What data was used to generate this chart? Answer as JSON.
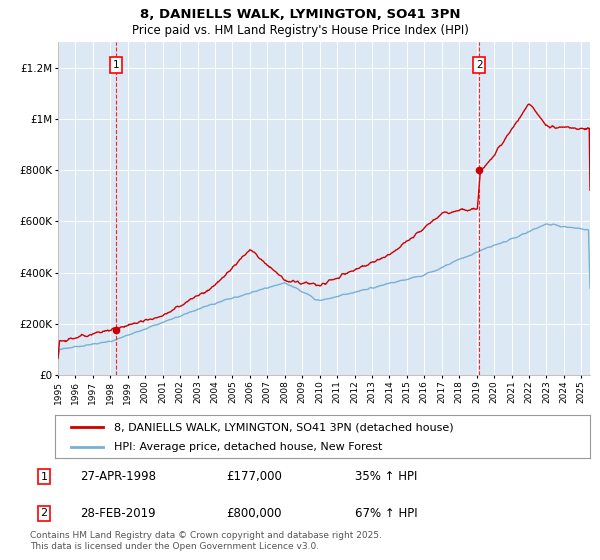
{
  "title": "8, DANIELLS WALK, LYMINGTON, SO41 3PN",
  "subtitle": "Price paid vs. HM Land Registry's House Price Index (HPI)",
  "bg_color": "#dce9f5",
  "red_line_color": "#cc0000",
  "blue_line_color": "#7ab0d4",
  "sale1_date": "27-APR-1998",
  "sale1_price": 177000,
  "sale1_label": "35% ↑ HPI",
  "sale1_year": 1998.32,
  "sale2_date": "28-FEB-2019",
  "sale2_price": 800000,
  "sale2_label": "67% ↑ HPI",
  "sale2_year": 2019.16,
  "legend_label_red": "8, DANIELLS WALK, LYMINGTON, SO41 3PN (detached house)",
  "legend_label_blue": "HPI: Average price, detached house, New Forest",
  "footer": "Contains HM Land Registry data © Crown copyright and database right 2025.\nThis data is licensed under the Open Government Licence v3.0.",
  "ylim": [
    0,
    1300000
  ],
  "xlim_start": 1995,
  "xlim_end": 2025.5
}
